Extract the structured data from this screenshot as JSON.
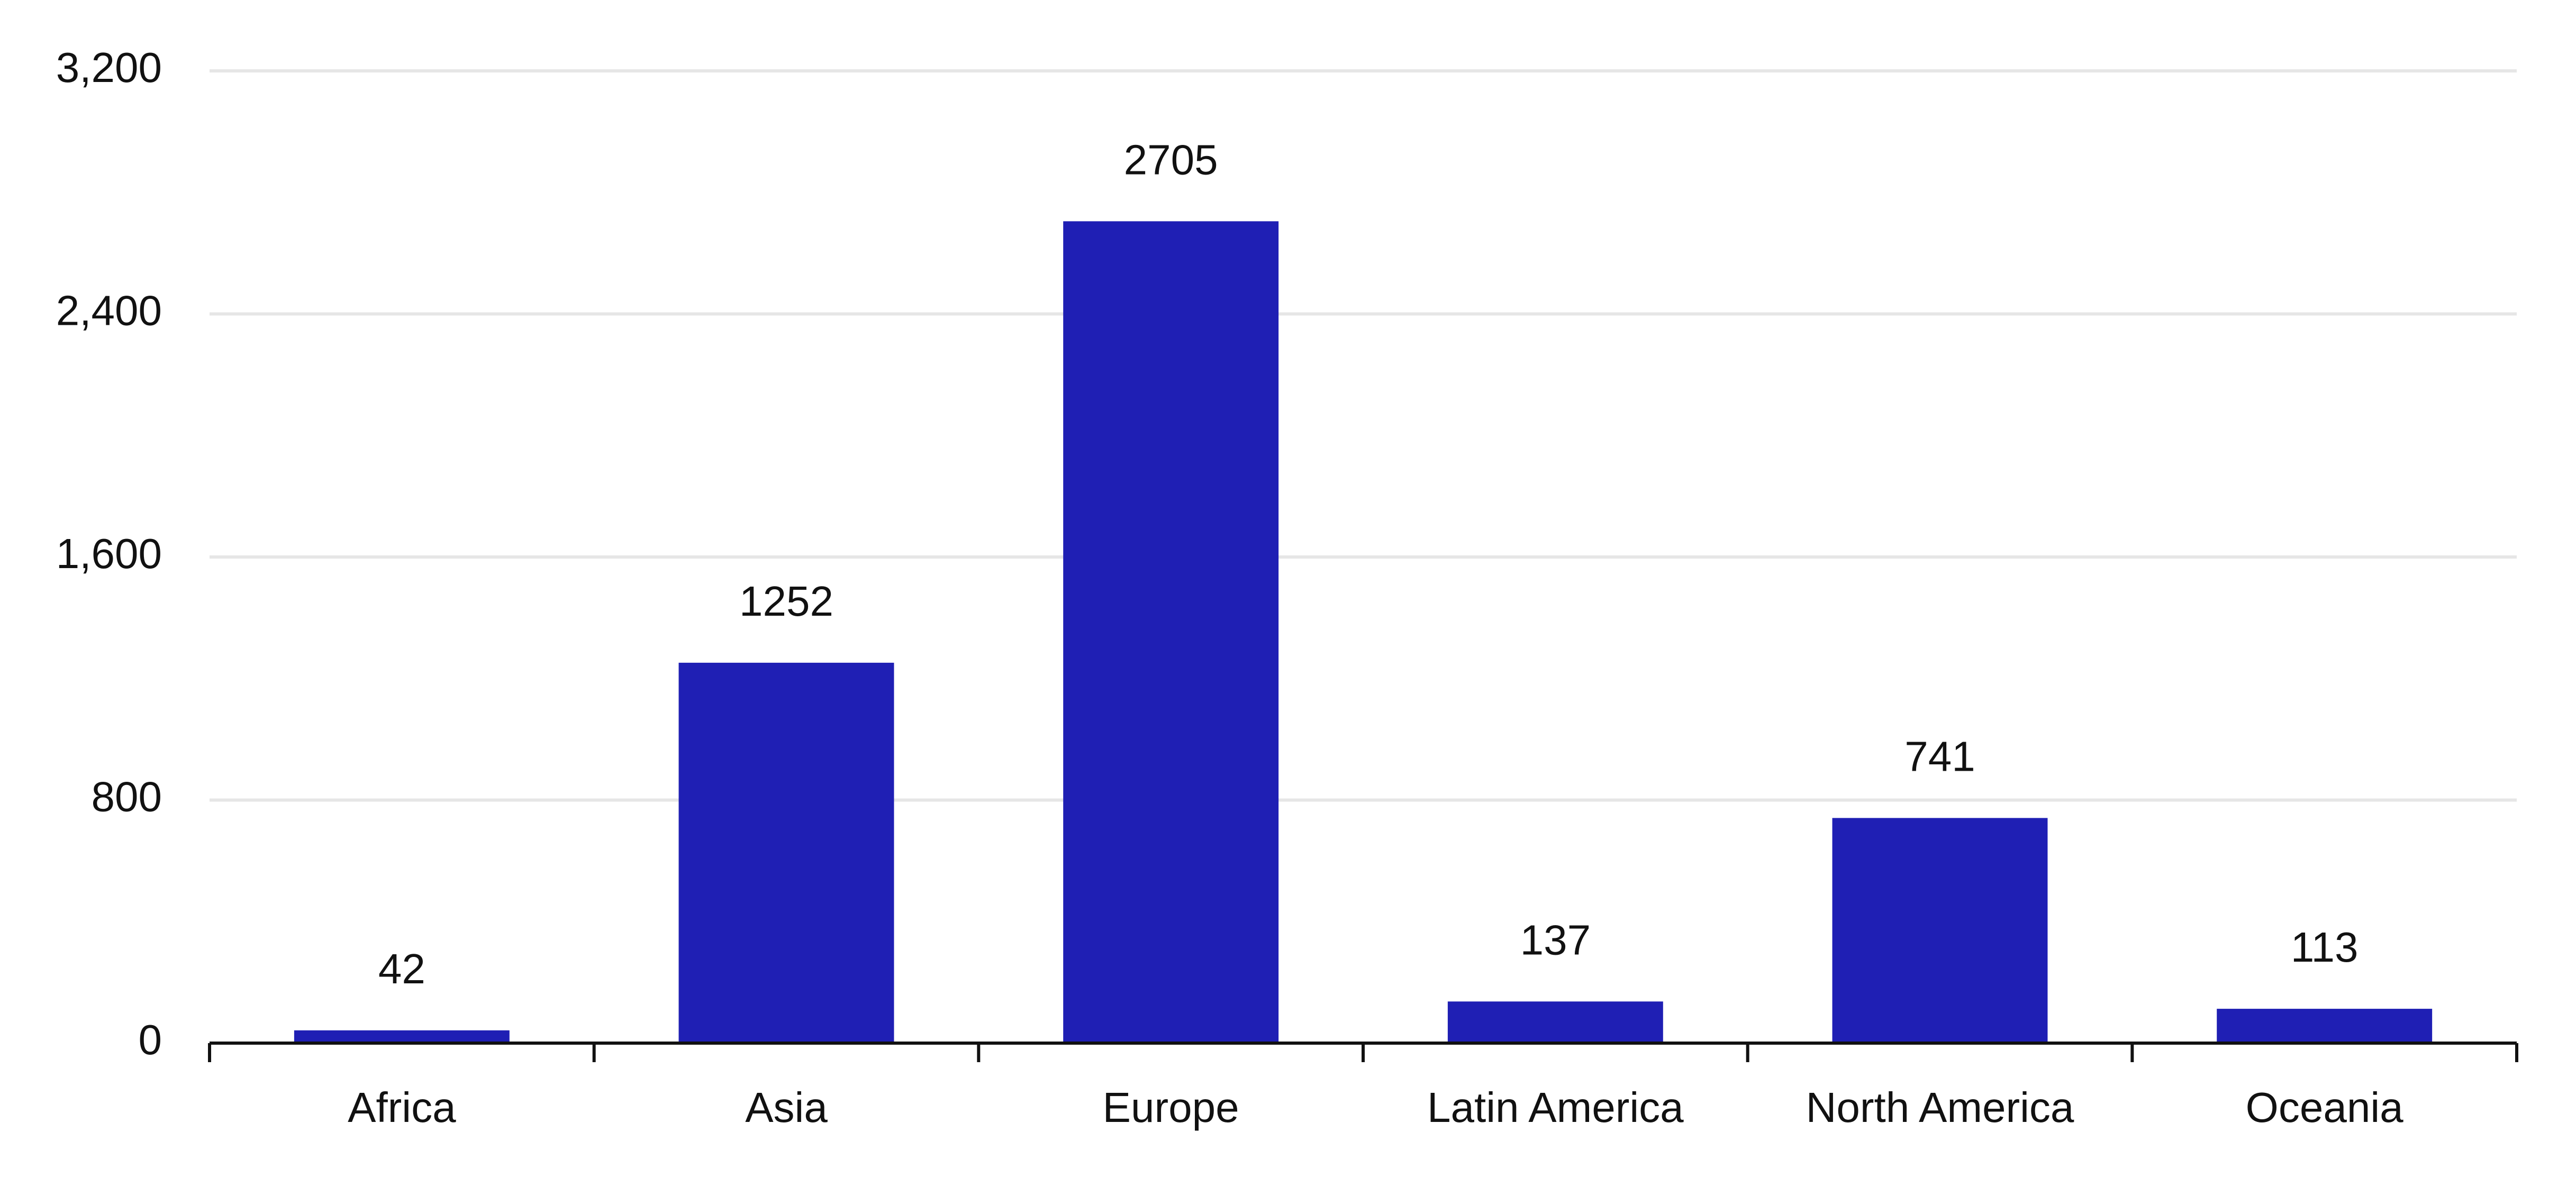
{
  "chart_data": {
    "type": "bar",
    "categories": [
      "Africa",
      "Asia",
      "Europe",
      "Latin America",
      "North America",
      "Oceania"
    ],
    "values": [
      42,
      1252,
      2705,
      137,
      741,
      113
    ],
    "color": "#1f1fb4",
    "ylim": [
      0,
      3200
    ],
    "yticks": [
      0,
      {
        "value": 800,
        "label": "800"
      },
      {
        "value": 1600,
        "label": "1,600"
      },
      {
        "value": 2400,
        "label": "2,400"
      },
      {
        "value": 3200,
        "label": "3,200"
      }
    ],
    "grid": true
  }
}
